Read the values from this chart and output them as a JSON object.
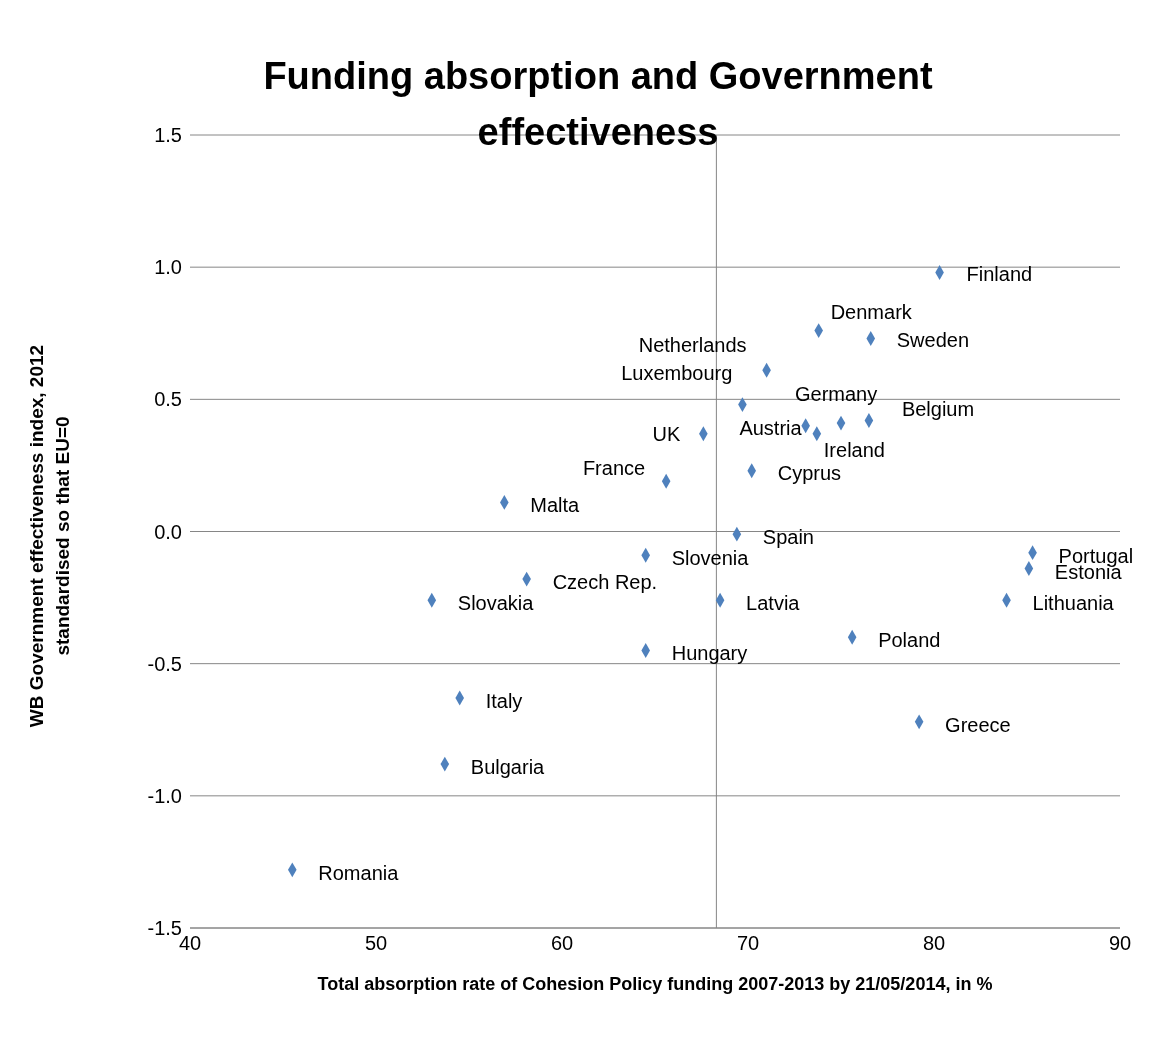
{
  "chart_data": {
    "type": "scatter",
    "title": "Funding absorption and Government effectiveness",
    "xlabel": "Total absorption rate of Cohesion Policy funding 2007-2013 by 21/05/2014, in %",
    "ylabel": "WB Government effectiveness index, 2012 standardised so that EU=0",
    "x": [
      80.3,
      73.8,
      76.6,
      71.0,
      69.7,
      75.0,
      76.5,
      73.1,
      73.7,
      67.6,
      70.2,
      65.6,
      56.9,
      69.4,
      64.5,
      85.3,
      85.1,
      83.9,
      58.1,
      53.0,
      68.5,
      75.6,
      64.5,
      54.5,
      79.2,
      53.7,
      45.5
    ],
    "series": [
      {
        "color": "#4f81bd",
        "values": [
          0.98,
          0.76,
          0.73,
          0.61,
          0.48,
          0.41,
          0.42,
          0.4,
          0.37,
          0.37,
          0.23,
          0.19,
          0.11,
          -0.01,
          -0.09,
          -0.08,
          -0.14,
          -0.26,
          -0.18,
          -0.26,
          -0.26,
          -0.4,
          -0.45,
          -0.63,
          -0.72,
          -0.88,
          -1.28
        ]
      }
    ],
    "annotations": [
      {
        "text": "Finland",
        "x": 80.3,
        "y": 0.98
      },
      {
        "text": "Denmark",
        "x": 73.8,
        "y": 0.76
      },
      {
        "text": "Sweden",
        "x": 76.6,
        "y": 0.73
      },
      {
        "text": "Netherlands",
        "x": 71.0,
        "y": 0.61
      },
      {
        "text": "Luxembourg",
        "x": 69.7,
        "y": 0.48
      },
      {
        "text": "Germany",
        "x": 75.0,
        "y": 0.41
      },
      {
        "text": "Belgium",
        "x": 76.5,
        "y": 0.42
      },
      {
        "text": "Austria",
        "x": 73.1,
        "y": 0.4
      },
      {
        "text": "Ireland",
        "x": 73.7,
        "y": 0.37
      },
      {
        "text": "UK",
        "x": 67.6,
        "y": 0.37
      },
      {
        "text": "Cyprus",
        "x": 70.2,
        "y": 0.23
      },
      {
        "text": "France",
        "x": 65.6,
        "y": 0.19
      },
      {
        "text": "Malta",
        "x": 56.9,
        "y": 0.11
      },
      {
        "text": "Spain",
        "x": 69.4,
        "y": -0.01
      },
      {
        "text": "Slovenia",
        "x": 64.5,
        "y": -0.09
      },
      {
        "text": "Portugal",
        "x": 85.3,
        "y": -0.08
      },
      {
        "text": "Estonia",
        "x": 85.1,
        "y": -0.14
      },
      {
        "text": "Lithuania",
        "x": 83.9,
        "y": -0.26
      },
      {
        "text": "Czech Rep.",
        "x": 58.1,
        "y": -0.18
      },
      {
        "text": "Slovakia",
        "x": 53.0,
        "y": -0.26
      },
      {
        "text": "Latvia",
        "x": 68.5,
        "y": -0.26
      },
      {
        "text": "Poland",
        "x": 75.6,
        "y": -0.4
      },
      {
        "text": "Hungary",
        "x": 64.5,
        "y": -0.45
      },
      {
        "text": "Italy",
        "x": 54.5,
        "y": -0.63
      },
      {
        "text": "Greece",
        "x": 79.2,
        "y": -0.72
      },
      {
        "text": "Bulgaria",
        "x": 53.7,
        "y": -0.88
      },
      {
        "text": "Romania",
        "x": 45.5,
        "y": -1.28
      }
    ],
    "xlim": [
      40,
      90
    ],
    "xticks": [
      40,
      50,
      60,
      70,
      80,
      90
    ],
    "ylim": [
      -1.5,
      1.5
    ],
    "yticks": [
      -1.5,
      {
        "value": -1,
        "label": "-1.0"
      },
      -0.5,
      {
        "value": 0,
        "label": "0.0"
      },
      0.5,
      {
        "value": 1,
        "label": "1.0"
      },
      1.5
    ],
    "ref_lines": [
      {
        "axis": "x",
        "value": 68.3,
        "color": "#868686"
      }
    ],
    "grid": "y",
    "marker": "diamond"
  }
}
